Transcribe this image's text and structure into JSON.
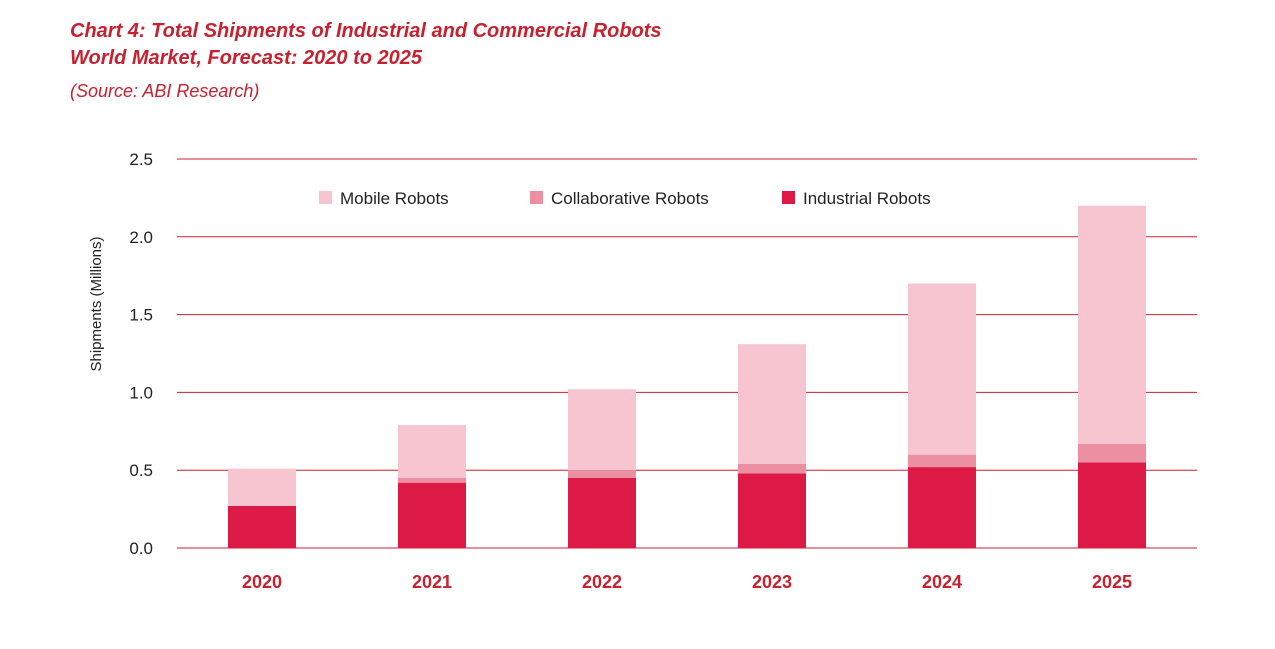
{
  "title_lines": [
    "Chart 4: Total Shipments of Industrial and Commercial Robots",
    "World Market, Forecast: 2020 to 2025"
  ],
  "source": "(Source: ABI Research)",
  "chart_data": {
    "type": "bar",
    "stacked": true,
    "categories": [
      "2020",
      "2021",
      "2022",
      "2023",
      "2024",
      "2025"
    ],
    "series": [
      {
        "name": "Industrial Robots",
        "color": "#dc1a45",
        "values": [
          0.27,
          0.42,
          0.45,
          0.48,
          0.52,
          0.55
        ]
      },
      {
        "name": "Collaborative Robots",
        "color": "#ec8fa3",
        "values": [
          0.0,
          0.03,
          0.05,
          0.06,
          0.08,
          0.12
        ]
      },
      {
        "name": "Mobile Robots",
        "color": "#f6c5d0",
        "values": [
          0.24,
          0.34,
          0.52,
          0.77,
          1.1,
          1.53
        ]
      }
    ],
    "legend_order": [
      "Mobile Robots",
      "Collaborative Robots",
      "Industrial Robots"
    ],
    "legend_position": "top",
    "ylabel": "Shipments (Millions)",
    "xlabel": "",
    "ylim": [
      0,
      2.5
    ],
    "yticks": [
      "0.0",
      "0.5",
      "1.0",
      "1.5",
      "2.0",
      "2.5"
    ],
    "grid": true,
    "grid_color": "#c8202f",
    "label_color": "#c8202f"
  }
}
